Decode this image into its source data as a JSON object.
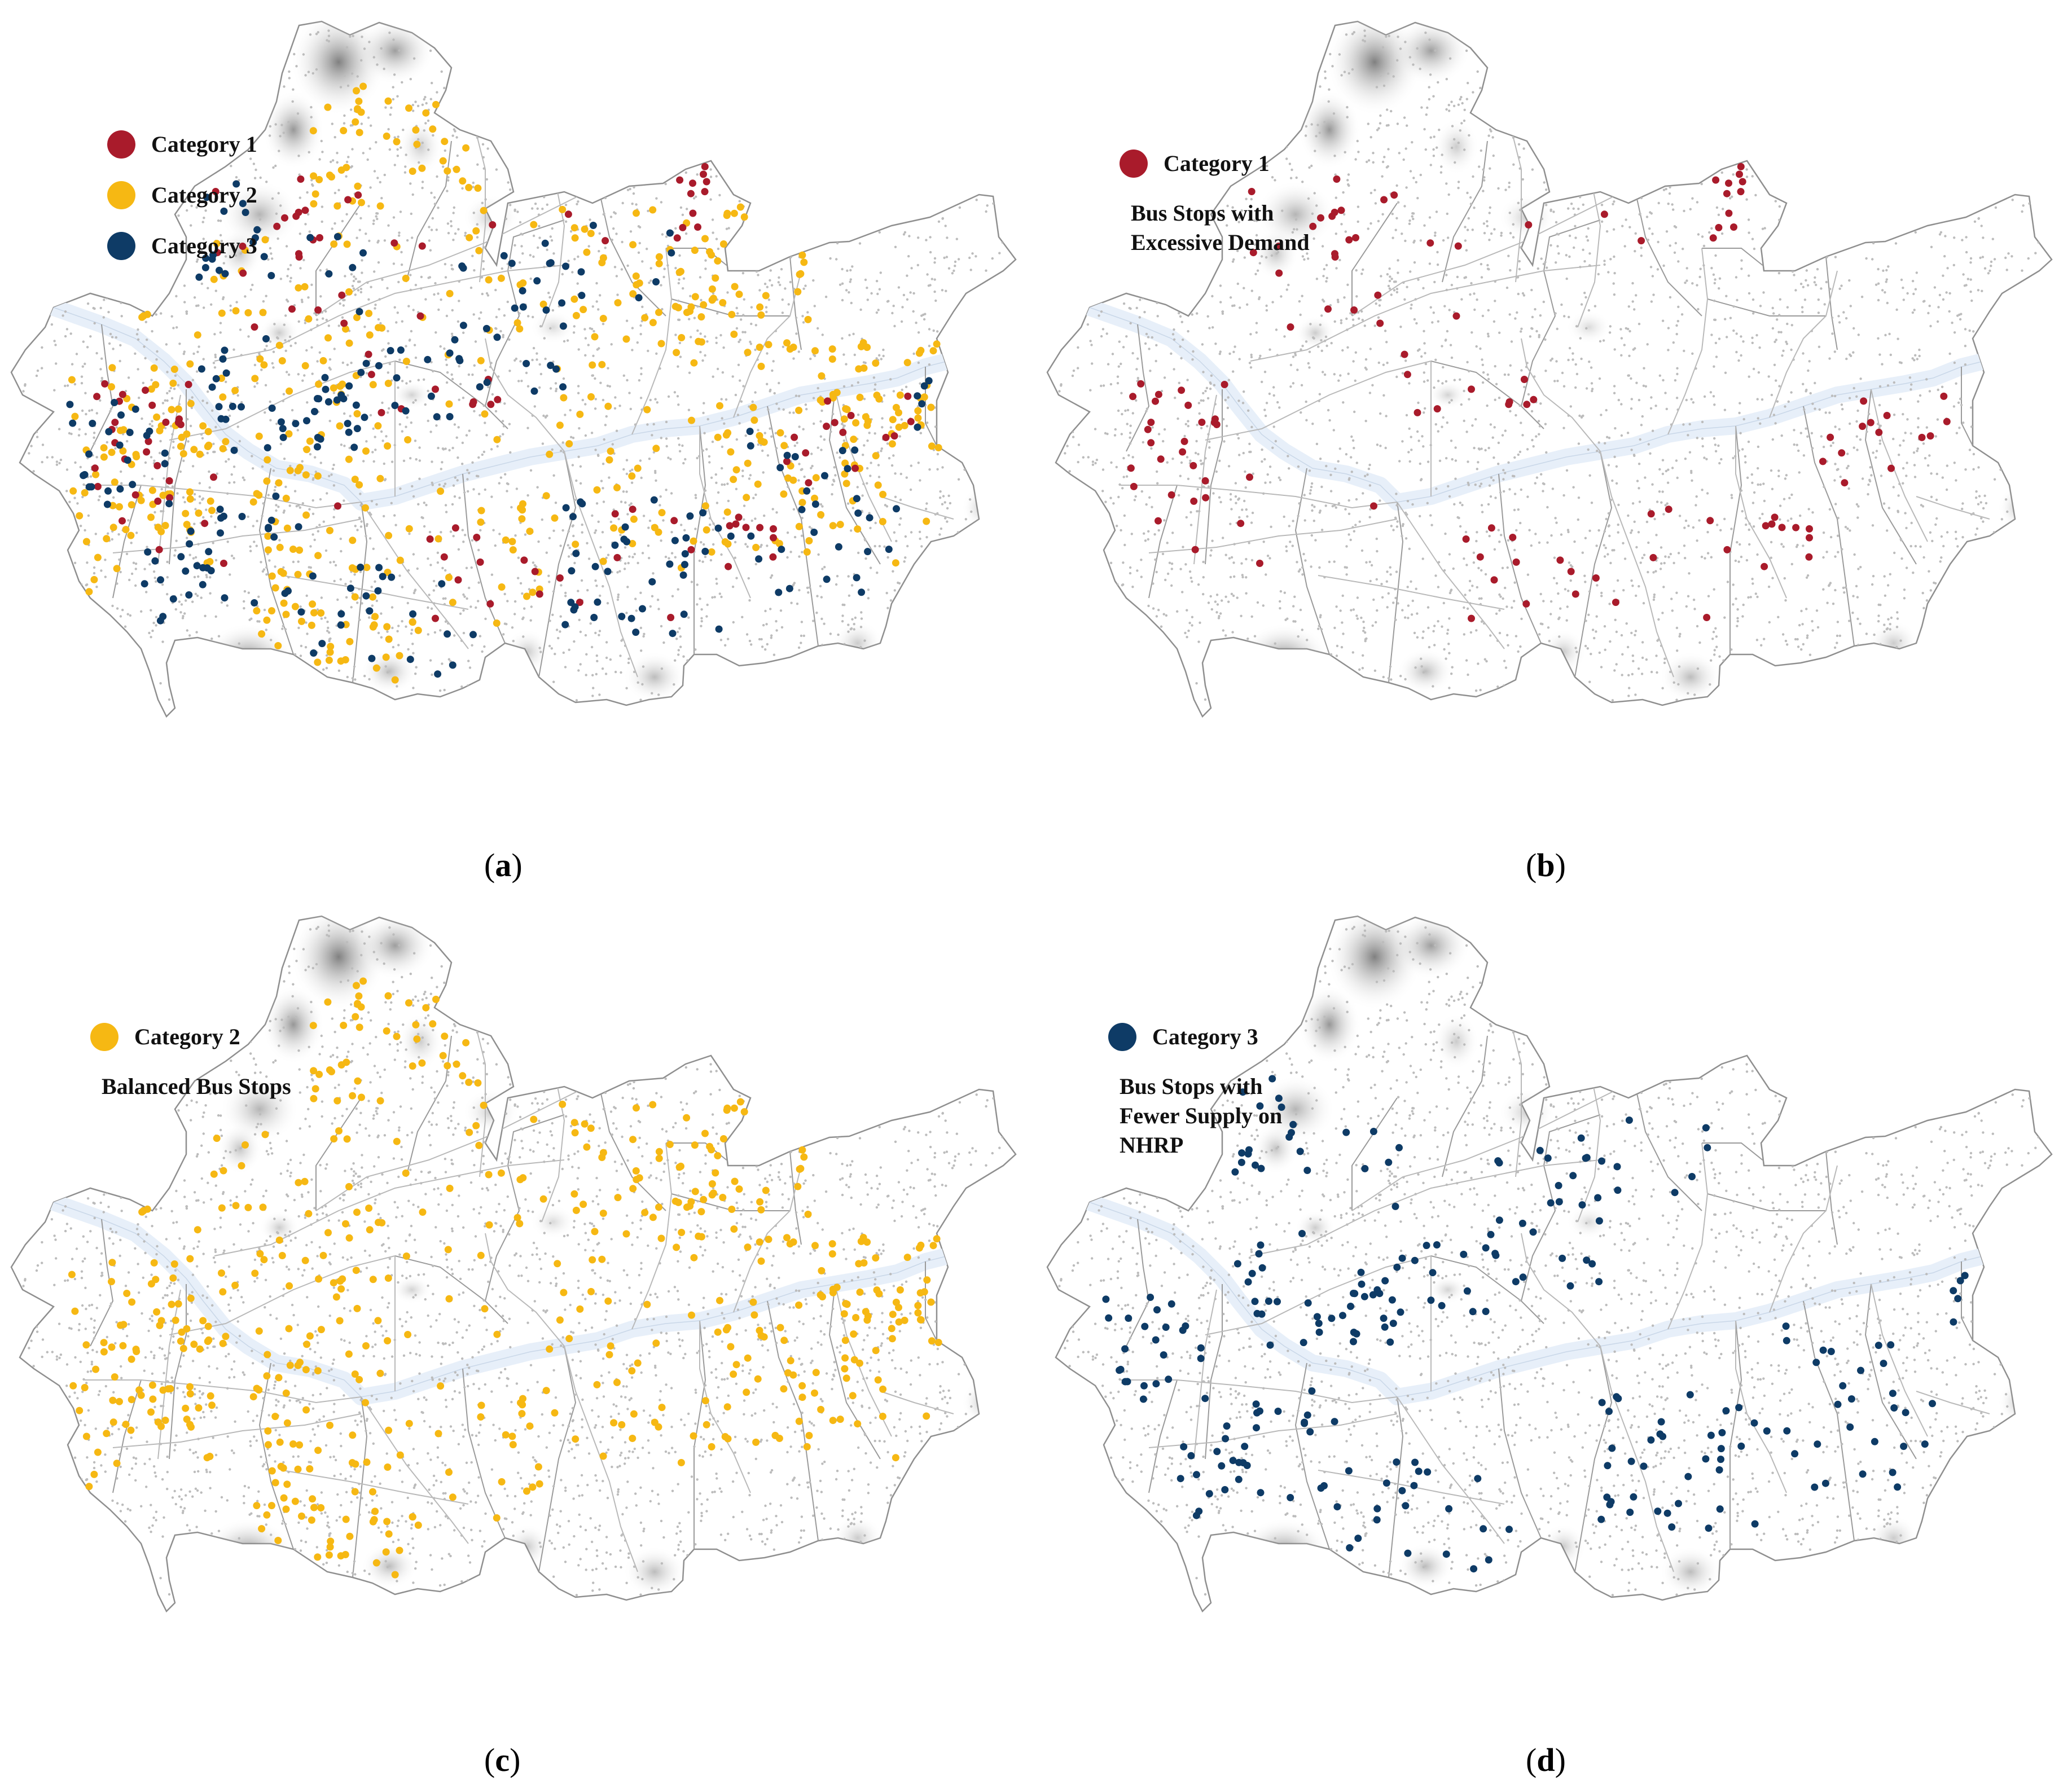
{
  "colors": {
    "category1": "#a91b2b",
    "category2": "#f6b813",
    "category3": "#0e3b66",
    "river": "#e7eff9",
    "boundary": "#8f8f8f",
    "road": "#b9b9b9",
    "stop": "#bcbcbc",
    "mountain_dark": "#6a6a6a"
  },
  "panels": [
    {
      "id": "a",
      "caption_letter": "a",
      "legend": [
        {
          "label": "Category 1",
          "color_key": "category1"
        },
        {
          "label": "Category 2",
          "color_key": "category2"
        },
        {
          "label": "Category 3",
          "color_key": "category3"
        }
      ],
      "description": "",
      "layers": [
        "category2",
        "category1",
        "category3"
      ]
    },
    {
      "id": "b",
      "caption_letter": "b",
      "legend": [
        {
          "label": "Category 1",
          "color_key": "category1"
        }
      ],
      "description": "Bus Stops with\nExcessive Demand",
      "layers": [
        "category1"
      ]
    },
    {
      "id": "c",
      "caption_letter": "c",
      "legend": [
        {
          "label": "Category 2",
          "color_key": "category2"
        }
      ],
      "description": "Balanced Bus Stops",
      "layers": [
        "category2"
      ]
    },
    {
      "id": "d",
      "caption_letter": "d",
      "legend": [
        {
          "label": "Category 3",
          "color_key": "category3"
        }
      ],
      "description": "Bus Stops with\nFewer Supply on\nNHRP",
      "layers": [
        "category3"
      ]
    }
  ]
}
